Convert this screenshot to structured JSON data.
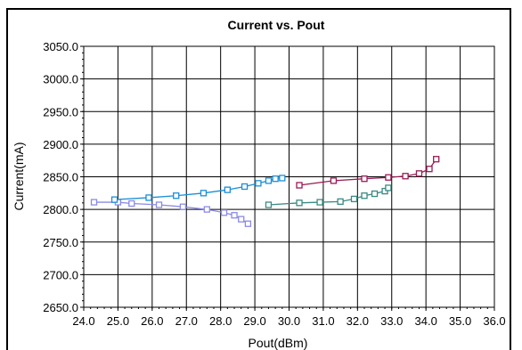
{
  "chart_data": {
    "type": "line",
    "title": "Current vs. Pout",
    "xlabel": "Pout(dBm)",
    "ylabel": "Current(mA)",
    "xlim": [
      24.0,
      36.0
    ],
    "ylim": [
      2650.0,
      3050.0
    ],
    "x_ticks": [
      "24.0",
      "25.0",
      "26.0",
      "27.0",
      "28.0",
      "29.0",
      "30.0",
      "31.0",
      "32.0",
      "33.0",
      "34.0",
      "35.0",
      "36.0"
    ],
    "y_ticks": [
      "2650.0",
      "2700.0",
      "2750.0",
      "2800.0",
      "2850.0",
      "2900.0",
      "2950.0",
      "3000.0",
      "3050.0"
    ],
    "grid": true,
    "series": [
      {
        "color": "#8a8ae8",
        "x": [
          24.3,
          25.0,
          25.4,
          26.2,
          26.9,
          27.6,
          28.1,
          28.4,
          28.6,
          28.8
        ],
        "y": [
          2811,
          2811,
          2809,
          2807,
          2804,
          2800,
          2795,
          2791,
          2785,
          2778
        ]
      },
      {
        "color": "#1a8ed6",
        "x": [
          24.9,
          25.9,
          26.7,
          27.5,
          28.2,
          28.7,
          29.1,
          29.4,
          29.6,
          29.8
        ],
        "y": [
          2815,
          2818,
          2821,
          2825,
          2830,
          2835,
          2840,
          2844,
          2847,
          2848
        ]
      },
      {
        "color": "#3a8a82",
        "x": [
          29.4,
          30.3,
          30.9,
          31.5,
          31.9,
          32.2,
          32.5,
          32.8,
          32.9
        ],
        "y": [
          2807,
          2810,
          2811,
          2812,
          2816,
          2821,
          2824,
          2828,
          2833
        ]
      },
      {
        "color": "#9a1a55",
        "x": [
          30.3,
          31.3,
          32.2,
          32.9,
          33.4,
          33.8,
          34.1,
          34.3
        ],
        "y": [
          2837,
          2844,
          2847,
          2849,
          2851,
          2855,
          2862,
          2877
        ]
      }
    ]
  }
}
